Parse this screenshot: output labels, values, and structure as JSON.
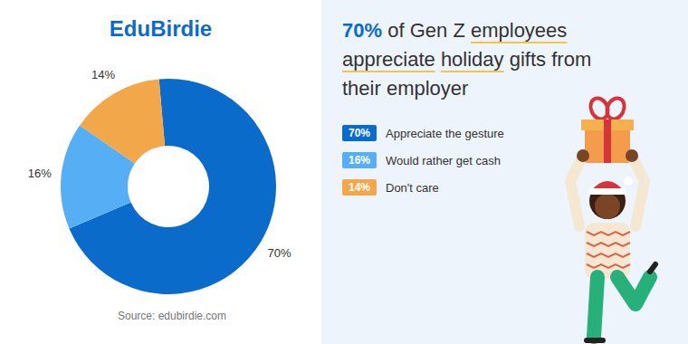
{
  "brand": "EduBirdie",
  "source": "Source: edubirdie.com",
  "chart_data": {
    "type": "pie",
    "title": "70% of Gen Z employees appreciate holiday gifts from their employer",
    "categories": [
      "Appreciate the gesture",
      "Would rather get cash",
      "Don't care"
    ],
    "values": [
      70,
      16,
      14
    ],
    "value_labels": [
      "70%",
      "16%",
      "14%"
    ],
    "colors": [
      "#0b6bcb",
      "#56aef5",
      "#f2a74b"
    ],
    "data_labels": true,
    "legend": "right"
  }
}
